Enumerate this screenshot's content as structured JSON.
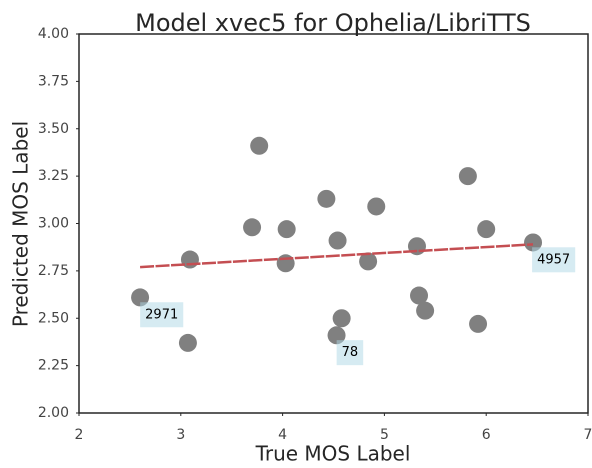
{
  "chart_data": {
    "type": "scatter",
    "title": "Model xvec5 for Ophelia/LibriTTS",
    "x_label": "True MOS Label",
    "y_label": "Predicted MOS Label",
    "color": "#808080",
    "x": [
      2.6,
      3.09,
      3.07,
      3.77,
      3.7,
      4.04,
      4.03,
      4.43,
      4.54,
      4.58,
      4.53,
      4.92,
      4.84,
      5.32,
      5.34,
      5.4,
      5.82,
      6.0,
      5.92,
      6.46
    ],
    "y": [
      2.61,
      2.81,
      2.37,
      3.41,
      2.98,
      2.97,
      2.79,
      3.13,
      2.91,
      2.5,
      2.41,
      3.09,
      2.8,
      2.88,
      2.62,
      2.54,
      3.25,
      2.97,
      2.47,
      2.9
    ],
    "trend_line": {
      "color": "#c44e52",
      "x": [
        2.6,
        6.46
      ],
      "y": [
        2.77,
        2.89
      ]
    },
    "annotations": [
      {
        "text": "2971",
        "x": 2.65,
        "y": 2.5
      },
      {
        "text": "78",
        "x": 4.58,
        "y": 2.3
      },
      {
        "text": "4957",
        "x": 6.5,
        "y": 2.79
      }
    ],
    "xlim": [
      2,
      7
    ],
    "xticks": [
      2,
      3,
      4,
      5,
      6,
      7
    ],
    "ylim": [
      2.0,
      4.0
    ],
    "yticks": [
      {
        "value": 2.0,
        "label": "2.00"
      },
      {
        "value": 2.25,
        "label": "2.25"
      },
      {
        "value": 2.5,
        "label": "2.50"
      },
      {
        "value": 2.75,
        "label": "2.75"
      },
      {
        "value": 3.0,
        "label": "3.00"
      },
      {
        "value": 3.25,
        "label": "3.25"
      },
      {
        "value": 3.5,
        "label": "3.50"
      },
      {
        "value": 3.75,
        "label": "3.75"
      },
      {
        "value": 4.0,
        "label": "4.00"
      }
    ],
    "grid": false
  }
}
